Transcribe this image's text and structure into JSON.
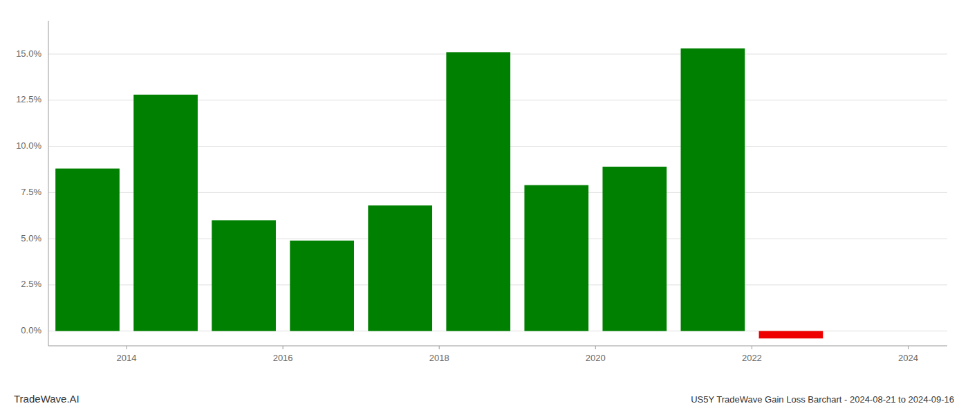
{
  "chart_data": {
    "type": "bar",
    "title": "US5Y TradeWave Gain Loss Barchart - 2024-08-21 to 2024-09-16",
    "annotations": [
      "TradeWave.AI"
    ],
    "x": [
      2013.5,
      2014.5,
      2015.5,
      2016.5,
      2017.5,
      2018.5,
      2019.5,
      2020.5,
      2021.5,
      2022.5,
      2023.5
    ],
    "values": [
      0.088,
      0.128,
      0.06,
      0.049,
      0.068,
      0.151,
      0.079,
      0.089,
      0.153,
      -0.004,
      0.0
    ],
    "colors": [
      "#008000",
      "#008000",
      "#008000",
      "#008000",
      "#008000",
      "#008000",
      "#008000",
      "#008000",
      "#008000",
      "#ee0000",
      "#008000"
    ],
    "xlim": [
      2013.0,
      2024.5
    ],
    "xticks": [
      2014,
      2016,
      2018,
      2020,
      2022,
      2024
    ],
    "ylim": [
      -0.008,
      0.168
    ],
    "yticks": [
      {
        "value": 0.0,
        "label": "0.0%"
      },
      {
        "value": 0.025,
        "label": "2.5%"
      },
      {
        "value": 0.05,
        "label": "5.0%"
      },
      {
        "value": 0.075,
        "label": "7.5%"
      },
      {
        "value": 0.1,
        "label": "10.0%"
      },
      {
        "value": 0.125,
        "label": "12.5%"
      },
      {
        "value": 0.15,
        "label": "15.0%"
      }
    ],
    "grid": true
  }
}
